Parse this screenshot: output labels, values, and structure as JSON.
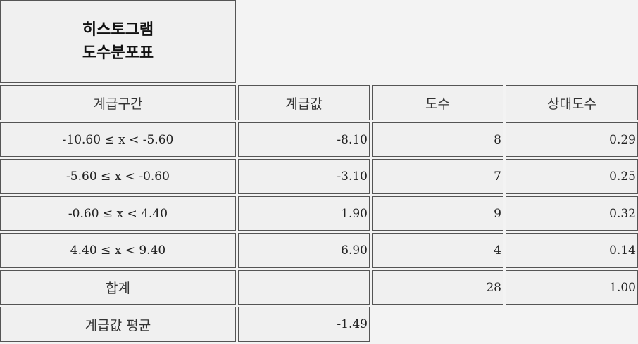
{
  "title": {
    "line1": "히스토그램",
    "line2": "도수분포표"
  },
  "headers": {
    "interval": "계급구간",
    "class_value": "계급값",
    "frequency": "도수",
    "relative_frequency": "상대도수"
  },
  "rows": [
    {
      "interval": "-10.60 ≤ x < -5.60",
      "class_value": "-8.10",
      "frequency": "8",
      "relative_frequency": "0.29"
    },
    {
      "interval": "-5.60 ≤ x < -0.60",
      "class_value": "-3.10",
      "frequency": "7",
      "relative_frequency": "0.25"
    },
    {
      "interval": "-0.60 ≤ x < 4.40",
      "class_value": "1.90",
      "frequency": "9",
      "relative_frequency": "0.32"
    },
    {
      "interval": "4.40 ≤ x < 9.40",
      "class_value": "6.90",
      "frequency": "4",
      "relative_frequency": "0.14"
    }
  ],
  "total": {
    "label": "합계",
    "class_value": "",
    "frequency": "28",
    "relative_frequency": "1.00"
  },
  "mean": {
    "label": "계급값 평균",
    "value": "-1.49"
  }
}
